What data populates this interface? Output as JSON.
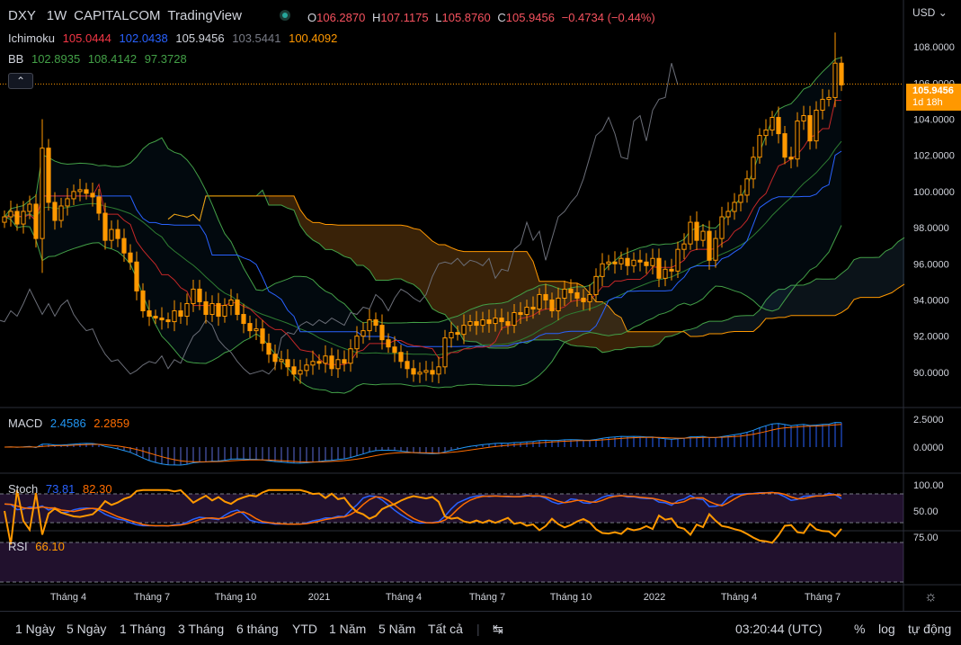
{
  "header": {
    "symbol": "DXY",
    "interval": "1W",
    "exchange": "CAPITALCOM",
    "brand": "TradingView",
    "open_label": "O",
    "open": "106.2870",
    "high_label": "H",
    "high": "107.1175",
    "low_label": "L",
    "low": "105.8760",
    "close_label": "C",
    "close": "105.9456",
    "change": "−0.4734 (−0.44%)",
    "currency": "USD",
    "colors": {
      "text": "#d1d4dc",
      "value": "#f7525f",
      "accent": "#ff9800"
    }
  },
  "indicators": {
    "ichimoku": {
      "name": "Ichimoku",
      "v1": "105.0444",
      "v2": "102.0438",
      "v3": "105.9456",
      "v4": "103.5441",
      "v5": "100.4092"
    },
    "bb": {
      "name": "BB",
      "v1": "102.8935",
      "v2": "108.4142",
      "v3": "97.3728"
    },
    "macd": {
      "name": "MACD",
      "v1": "2.4586",
      "v2": "2.2859"
    },
    "stoch": {
      "name": "Stoch",
      "v1": "73.81",
      "v2": "82.30"
    },
    "rsi": {
      "name": "RSI",
      "v1": "66.10"
    }
  },
  "price_tag": {
    "price": "105.9456",
    "countdown": "1d 18h"
  },
  "bottom_bar": {
    "ranges": [
      "1 Ngày",
      "5 Ngày",
      "1 Tháng",
      "3 Tháng",
      "6 tháng",
      "YTD",
      "1 Năm",
      "5 Năm",
      "Tất cả"
    ],
    "time": "03:20:44 (UTC)",
    "percent": "%",
    "log": "log",
    "auto": "tự động"
  },
  "chart_data": {
    "type": "candlestick",
    "symbol": "DXY",
    "interval": "1W",
    "x_tick_labels": [
      "Tháng 4",
      "Tháng 7",
      "Tháng 10",
      "2021",
      "Tháng 4",
      "Tháng 7",
      "Tháng 10",
      "2022",
      "Tháng 4",
      "Tháng 7"
    ],
    "price_axis": {
      "ticks": [
        "108.0000",
        "106.0000",
        "104.0000",
        "102.0000",
        "100.0000",
        "98.0000",
        "96.0000",
        "94.0000",
        "92.0000",
        "90.0000"
      ],
      "range": [
        88.2,
        109.6
      ]
    },
    "macd_axis": {
      "ticks": [
        "2.5000",
        "0.0000"
      ]
    },
    "stoch_axis": {
      "ticks": [
        "100.00"
      ]
    },
    "rsi_axis": {
      "ticks": [
        "75.00",
        "50.00"
      ]
    },
    "last_price": 105.9456,
    "closes": [
      98.6,
      98.9,
      98.2,
      98.9,
      99.3,
      97.4,
      102.4,
      99.4,
      98.4,
      99.2,
      99.6,
      100.0,
      100.1,
      99.9,
      99.7,
      98.8,
      97.3,
      97.9,
      97.4,
      96.6,
      96.1,
      94.5,
      93.4,
      93.1,
      93.0,
      92.9,
      92.8,
      93.4,
      93.1,
      93.8,
      94.6,
      93.9,
      93.2,
      93.8,
      93.1,
      93.7,
      94.0,
      93.2,
      92.7,
      92.3,
      92.4,
      91.6,
      91.0,
      90.6,
      90.7,
      90.3,
      89.9,
      90.1,
      90.4,
      90.6,
      90.5,
      90.9,
      90.2,
      90.7,
      90.5,
      91.3,
      92.0,
      92.3,
      92.9,
      92.6,
      91.8,
      91.4,
      91.1,
      90.6,
      90.2,
      89.9,
      90.0,
      90.1,
      89.9,
      90.3,
      91.9,
      92.2,
      92.1,
      92.6,
      92.8,
      92.6,
      92.9,
      92.7,
      93.0,
      92.8,
      92.6,
      93.3,
      93.2,
      93.6,
      93.5,
      94.3,
      94.0,
      93.4,
      94.1,
      94.6,
      94.4,
      94.1,
      93.9,
      94.3,
      95.3,
      96.0,
      96.1,
      96.0,
      96.3,
      95.9,
      96.2,
      96.1,
      95.9,
      96.3,
      95.2,
      95.7,
      95.6,
      96.8,
      97.1,
      98.3,
      97.3,
      97.8,
      96.2,
      97.4,
      98.6,
      98.9,
      99.4,
      99.8,
      100.7,
      101.9,
      103.1,
      103.4,
      104.1,
      103.2,
      101.9,
      101.8,
      103.9,
      104.2,
      102.8,
      104.5,
      105.1,
      105.2,
      107.1,
      105.9
    ]
  }
}
